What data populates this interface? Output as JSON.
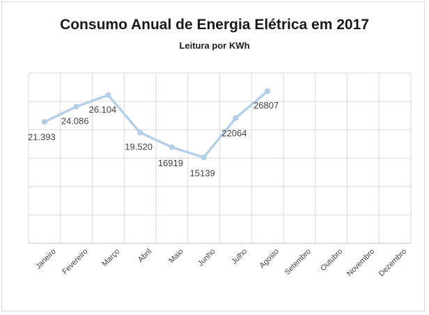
{
  "chart_data": {
    "type": "line",
    "title": "Consumo Anual de Energia Elétrica em 2017",
    "subtitle": "Leitura por KWh",
    "categories": [
      "Janeiro",
      "Fevereiro",
      "Março",
      "Abril",
      "Maio",
      "Junho",
      "Julho",
      "Agosto",
      "Setembro",
      "Outubro",
      "Novembro",
      "Dezembro"
    ],
    "series": [
      {
        "values": [
          21393,
          24086,
          26104,
          19520,
          16919,
          15139,
          22064,
          26807,
          null,
          null,
          null,
          null
        ],
        "data_labels": [
          "21.393",
          "24.086",
          "26.104",
          "19.520",
          "16919",
          "15139",
          "22064",
          "26807"
        ]
      }
    ],
    "ylim": [
      0,
      30000
    ],
    "y_grid_step": 5000,
    "grid": true,
    "y_tick_labels_shown": false,
    "legend": "none",
    "line_color": "#b4cfe6",
    "grid_color": "#d9d9d9"
  }
}
